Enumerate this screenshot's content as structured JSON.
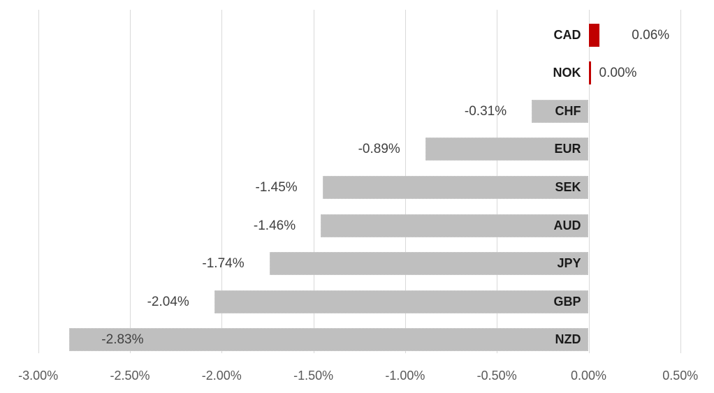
{
  "chart_data": {
    "type": "bar",
    "orientation": "horizontal",
    "title": "",
    "xlabel": "",
    "ylabel": "",
    "unit": "%",
    "xlim": [
      -3.0,
      0.5
    ],
    "grid": "vertical-only",
    "legend": "none",
    "categories": [
      "CAD",
      "NOK",
      "CHF",
      "EUR",
      "SEK",
      "AUD",
      "JPY",
      "GBP",
      "NZD"
    ],
    "values": [
      0.06,
      0.0,
      -0.31,
      -0.89,
      -1.45,
      -1.46,
      -1.74,
      -2.04,
      -2.83
    ],
    "value_labels": [
      "0.06%",
      "0.00%",
      "-0.31%",
      "-0.89%",
      "-1.45%",
      "-1.46%",
      "-1.74%",
      "-2.04%",
      "-2.83%"
    ],
    "bar_colors": [
      "#c00000",
      "#c00000",
      "#bfbfbf",
      "#bfbfbf",
      "#bfbfbf",
      "#bfbfbf",
      "#bfbfbf",
      "#bfbfbf",
      "#bfbfbf"
    ],
    "x_ticks": [
      {
        "value": -3.0,
        "label": "-3.00%"
      },
      {
        "value": -2.5,
        "label": "-2.50%"
      },
      {
        "value": -2.0,
        "label": "-2.00%"
      },
      {
        "value": -1.5,
        "label": "-1.50%"
      },
      {
        "value": -1.0,
        "label": "-1.00%"
      },
      {
        "value": -0.5,
        "label": "-0.50%"
      },
      {
        "value": 0.0,
        "label": "0.00%"
      },
      {
        "value": 0.5,
        "label": "0.50%"
      }
    ],
    "colors": {
      "highlight_bar": "#c00000",
      "default_bar": "#bfbfbf",
      "gridline": "#d9d9d9",
      "tick_label": "#595959",
      "value_label": "#404040",
      "category_label": "#1a1a1a",
      "background": "#ffffff"
    }
  }
}
